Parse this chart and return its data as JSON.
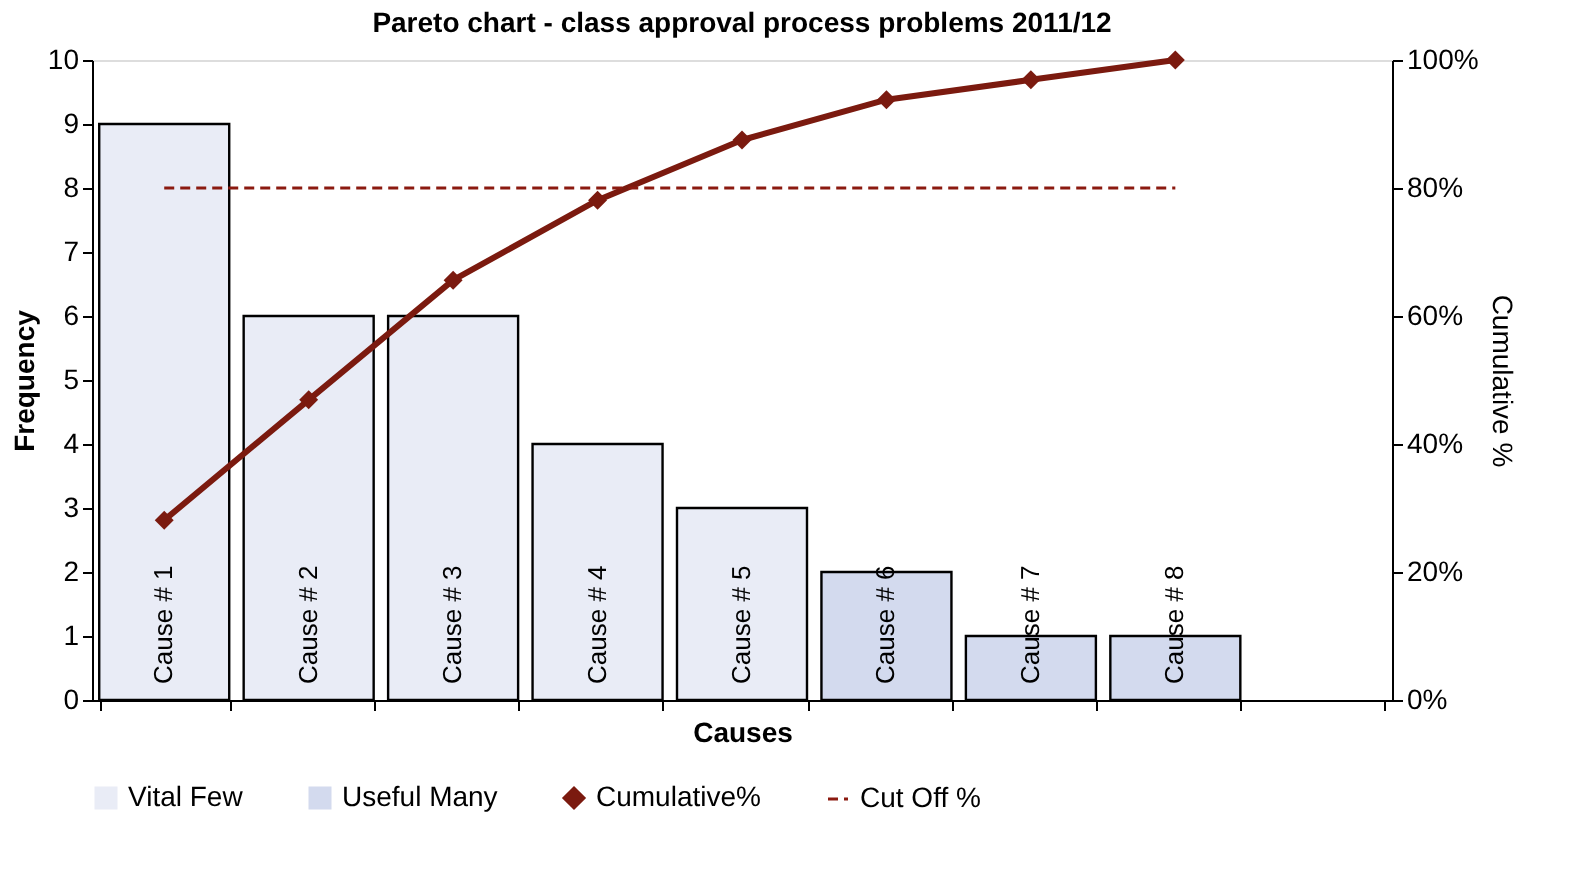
{
  "chart_data": {
    "type": "bar",
    "title": "Pareto chart - class approval process problems 2011/12",
    "xlabel": "Causes",
    "ylabel": "Frequency",
    "y2label": "Cumulative %",
    "categories": [
      "Cause # 1",
      "Cause # 2",
      "Cause # 3",
      "Cause # 4",
      "Cause # 5",
      "Cause # 6",
      "Cause # 7",
      "Cause # 8",
      null
    ],
    "series": [
      {
        "name": "Vital Few",
        "color": "#e9ecf6",
        "values": [
          9,
          6,
          6,
          4,
          3,
          null,
          null,
          null,
          null
        ]
      },
      {
        "name": "Useful Many",
        "color": "#d3daee",
        "values": [
          null,
          null,
          null,
          null,
          null,
          2,
          1,
          1,
          null
        ]
      },
      {
        "name": "Cumulative%",
        "type": "line",
        "axis": "y2",
        "color": "#7b1a0f",
        "marker": "diamond",
        "line_style": "solid",
        "values": [
          28.1,
          46.9,
          65.6,
          78.1,
          87.5,
          93.8,
          96.9,
          100,
          null
        ]
      },
      {
        "name": "Cut Off %",
        "type": "line",
        "axis": "y2",
        "color": "#8b1a10",
        "marker": "none",
        "line_style": "dashed",
        "values": [
          80,
          80,
          80,
          80,
          80,
          80,
          80,
          80,
          null
        ]
      }
    ],
    "ylim": [
      0,
      10
    ],
    "yticks": [
      0,
      1,
      2,
      3,
      4,
      5,
      6,
      7,
      8,
      9,
      10
    ],
    "y2lim": [
      0,
      100
    ],
    "y2ticks": [
      {
        "value": 0,
        "label": "0%"
      },
      {
        "value": 20,
        "label": "20%"
      },
      {
        "value": 40,
        "label": "40%"
      },
      {
        "value": 60,
        "label": "60%"
      },
      {
        "value": 80,
        "label": "80%"
      },
      {
        "value": 100,
        "label": "100%"
      }
    ],
    "grid": false,
    "legend": "bottom"
  }
}
